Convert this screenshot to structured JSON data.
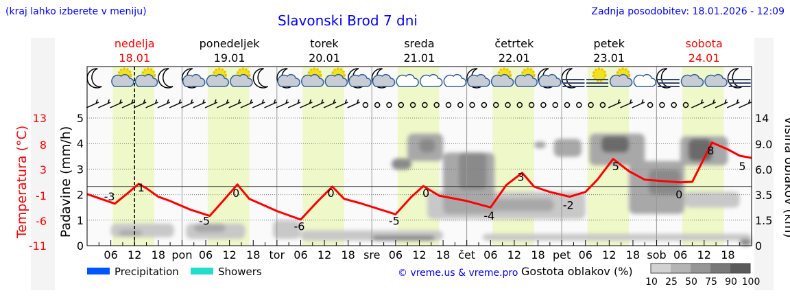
{
  "header": {
    "menu_hint": "(kraj lahko izberete v meniju)",
    "title": "Slavonski Brod 7 dni",
    "updated": "Zadnja posodobitev: 18.01.2026 - 12:09"
  },
  "days": [
    {
      "name": "nedelja",
      "date": "18.01",
      "weekend": true
    },
    {
      "name": "ponedeljek",
      "date": "19.01",
      "weekend": false
    },
    {
      "name": "torek",
      "date": "20.01",
      "weekend": false
    },
    {
      "name": "sreda",
      "date": "21.01",
      "weekend": false
    },
    {
      "name": "četrtek",
      "date": "22.01",
      "weekend": false
    },
    {
      "name": "petek",
      "date": "23.01",
      "weekend": false
    },
    {
      "name": "sobota",
      "date": "24.01",
      "weekend": true
    }
  ],
  "colors": {
    "accent": "#0000ff",
    "temp": "#ff0000",
    "daylight": "#eff8c8",
    "precip": "#0055ff",
    "showers": "#22ddcc"
  },
  "legend": {
    "precipitation": "Precipitation",
    "showers": "Showers",
    "copyright": "© vreme.us & vreme.pro",
    "cloud_density": "Gostota oblakov (%)",
    "density_ticks": [
      "10",
      "25",
      "50",
      "75",
      "90",
      "100"
    ]
  },
  "chart_data": {
    "type": "line",
    "title": "Slavonski Brod 7 dni",
    "y_left_temp_label": "Temperatura (°C)",
    "y_left_temp_ticks": [
      "13",
      "8",
      "3",
      "-1",
      "-6",
      "-11"
    ],
    "y_left_precip_label": "Padavine (mm/h)",
    "y_left_precip_ticks": [
      "0",
      "1",
      "2",
      "3",
      "4",
      "5"
    ],
    "y_right_label": "Višina oblakov (km)",
    "y_right_ticks": [
      "0",
      "1.5",
      "3.5",
      "6.0",
      "9.0",
      "14"
    ],
    "x_tick_labels": [
      "06",
      "12",
      "18",
      "pon",
      "06",
      "12",
      "18",
      "tor",
      "06",
      "12",
      "18",
      "sre",
      "06",
      "12",
      "18",
      "čet",
      "06",
      "12",
      "18",
      "pet",
      "06",
      "12",
      "18",
      "sob",
      "06",
      "12",
      "18"
    ],
    "now_hour": 12,
    "temperature": {
      "hours": [
        0,
        7,
        10,
        13,
        15,
        18,
        21,
        26,
        31,
        34,
        38,
        41,
        45,
        48,
        54,
        58,
        62,
        65,
        69,
        78,
        82,
        85,
        89,
        96,
        102,
        106,
        110,
        113,
        117,
        122,
        126,
        129,
        133,
        137,
        141,
        150,
        153,
        158,
        162,
        165,
        168
      ],
      "values": [
        -1.3,
        -3.1,
        -1.3,
        0.6,
        -0.2,
        -1.8,
        -2.6,
        -4.2,
        -5.4,
        -2.9,
        0.5,
        -2.2,
        -3.5,
        -4.5,
        -6.1,
        -2.9,
        0.1,
        -2.2,
        -3,
        -5.1,
        -1.8,
        0.2,
        -1.6,
        -2.6,
        -3.8,
        0.4,
        2.7,
        0.1,
        -0.9,
        -1.8,
        -0.9,
        1.4,
        5.3,
        3,
        1.4,
        0.9,
        1,
        8.4,
        7.1,
        5.9,
        5.5
      ]
    },
    "extreme_labels": [
      {
        "hour": 6,
        "value": "-3",
        "kind": "min"
      },
      {
        "hour": 14,
        "value": "1",
        "kind": "max"
      },
      {
        "hour": 30,
        "value": "-5",
        "kind": "min"
      },
      {
        "hour": 38,
        "value": "0",
        "kind": "max"
      },
      {
        "hour": 54,
        "value": "-6",
        "kind": "min"
      },
      {
        "hour": 62,
        "value": "0",
        "kind": "max"
      },
      {
        "hour": 78,
        "value": "-5",
        "kind": "min"
      },
      {
        "hour": 86,
        "value": "0",
        "kind": "max"
      },
      {
        "hour": 102,
        "value": "-4",
        "kind": "min"
      },
      {
        "hour": 110,
        "value": "3",
        "kind": "max"
      },
      {
        "hour": 122,
        "value": "-2",
        "kind": "min"
      },
      {
        "hour": 134,
        "value": "5",
        "kind": "max"
      },
      {
        "hour": 150,
        "value": "0",
        "kind": "min"
      },
      {
        "hour": 158,
        "value": "8",
        "kind": "max"
      },
      {
        "hour": 166,
        "value": "5",
        "kind": "end"
      }
    ],
    "daylight_hours": [
      6.5,
      17
    ],
    "cloud_patches": [
      {
        "h": [
          6,
          22
        ],
        "km": [
          0.5,
          1.3
        ],
        "d": 25
      },
      {
        "h": [
          8,
          14
        ],
        "km": [
          0.6,
          0.9
        ],
        "d": 50
      },
      {
        "h": [
          25,
          40
        ],
        "km": [
          0.4,
          1.3
        ],
        "d": 25
      },
      {
        "h": [
          27,
          35
        ],
        "km": [
          0.8,
          1.3
        ],
        "d": 50
      },
      {
        "h": [
          47,
          54
        ],
        "km": [
          0.4,
          1.5
        ],
        "d": 25
      },
      {
        "h": [
          54,
          90
        ],
        "km": [
          0.3,
          0.9
        ],
        "d": 25
      },
      {
        "h": [
          72,
          88
        ],
        "km": [
          0.3,
          0.6
        ],
        "d": 75
      },
      {
        "h": [
          77,
          82
        ],
        "km": [
          6,
          7.3
        ],
        "d": 75
      },
      {
        "h": [
          81,
          90
        ],
        "km": [
          7,
          11
        ],
        "d": 50
      },
      {
        "h": [
          84,
          88
        ],
        "km": [
          8,
          10
        ],
        "d": 75
      },
      {
        "h": [
          86,
          126
        ],
        "km": [
          1.6,
          3.8
        ],
        "d": 25
      },
      {
        "h": [
          100,
          118
        ],
        "km": [
          2.2,
          3.2
        ],
        "d": 50
      },
      {
        "h": [
          90,
          103
        ],
        "km": [
          2,
          8
        ],
        "d": 50
      },
      {
        "h": [
          94,
          101
        ],
        "km": [
          4,
          8
        ],
        "d": 75
      },
      {
        "h": [
          113,
          116
        ],
        "km": [
          8.5,
          9.5
        ],
        "d": 50
      },
      {
        "h": [
          118,
          125
        ],
        "km": [
          7.5,
          10
        ],
        "d": 50
      },
      {
        "h": [
          127,
          141
        ],
        "km": [
          6.5,
          11
        ],
        "d": 50
      },
      {
        "h": [
          130,
          137
        ],
        "km": [
          8,
          10.5
        ],
        "d": 90
      },
      {
        "h": [
          137,
          151
        ],
        "km": [
          2,
          7
        ],
        "d": 50
      },
      {
        "h": [
          142,
          150
        ],
        "km": [
          3.5,
          6
        ],
        "d": 75
      },
      {
        "h": [
          150,
          162
        ],
        "km": [
          6.5,
          10.5
        ],
        "d": 50
      },
      {
        "h": [
          152,
          158
        ],
        "km": [
          7,
          10
        ],
        "d": 90
      },
      {
        "h": [
          151,
          165
        ],
        "km": [
          2.5,
          3.8
        ],
        "d": 25
      },
      {
        "h": [
          100,
          168
        ],
        "km": [
          0.3,
          0.7
        ],
        "d": 25
      },
      {
        "h": [
          165,
          168
        ],
        "km": [
          0,
          0.4
        ],
        "d": 75
      }
    ],
    "weather_icons": [
      "moon",
      "sun-cloud",
      "sun-cloud",
      "moon",
      "moon-cloud",
      "sun-cloud",
      "sun-cloud",
      "moon",
      "moon-cloud",
      "sun-cloud",
      "sun-cloud",
      "moon-cloud",
      "moon-cloud",
      "cloud",
      "cloud",
      "cloud",
      "moon-cloud",
      "sun-cloud",
      "sun-cloud",
      "moon-cloud",
      "moon-fog",
      "sun-fog",
      "sun-cloud",
      "cloud",
      "moon-fog",
      "cloud-sleet",
      "cloud-sleet",
      "moon-fog"
    ],
    "wind": [
      "b",
      "b",
      "b",
      "b",
      "b",
      "b",
      "b",
      "b",
      "b",
      "b",
      "b",
      "b",
      "b",
      "b",
      "b",
      "b",
      "b",
      "b",
      "b",
      "b",
      "b",
      "b",
      "b",
      "c",
      "c",
      "c",
      "c",
      "c",
      "c",
      "c",
      "c",
      "c",
      "c",
      "c",
      "c",
      "c",
      "c",
      "c",
      "c",
      "c",
      "c",
      "c",
      "c",
      "c",
      "b",
      "b",
      "b",
      "c",
      "c",
      "c",
      "c",
      "b",
      "b",
      "b",
      "b",
      "b"
    ]
  }
}
